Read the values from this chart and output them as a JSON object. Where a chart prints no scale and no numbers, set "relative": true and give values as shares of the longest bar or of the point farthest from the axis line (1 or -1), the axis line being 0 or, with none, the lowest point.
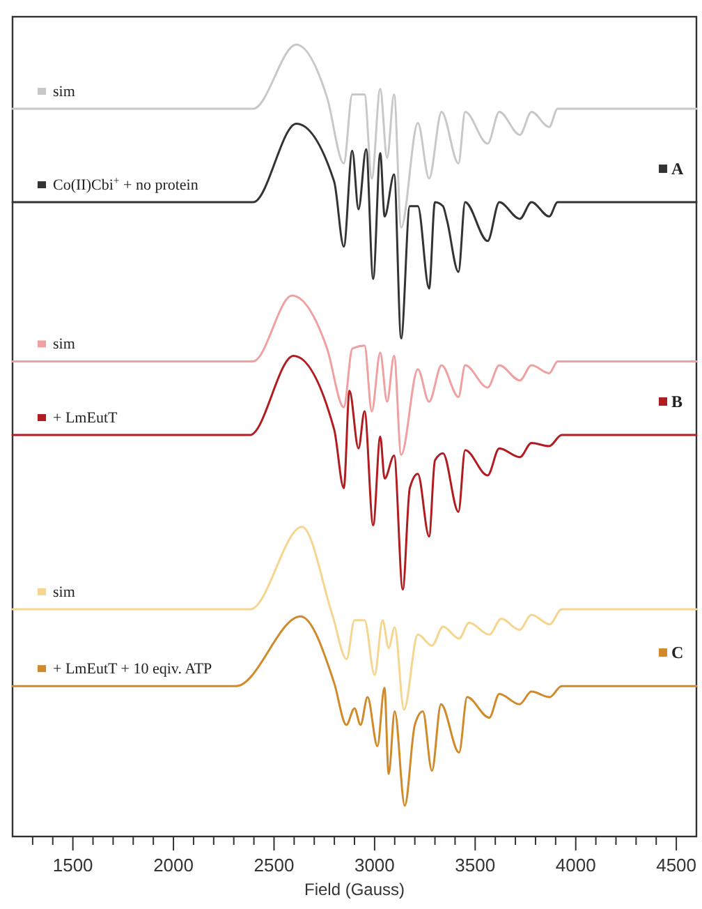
{
  "chart_data": {
    "type": "line",
    "relative": true,
    "xlabel": "Field (Gauss)",
    "xlim": [
      1200,
      4600
    ],
    "xticks": [
      {
        "value": 1300,
        "label": null
      },
      {
        "value": 1400,
        "label": null
      },
      1500,
      {
        "value": 1600,
        "label": null
      },
      {
        "value": 1700,
        "label": null
      },
      {
        "value": 1800,
        "label": null
      },
      {
        "value": 1900,
        "label": null
      },
      2000,
      {
        "value": 2100,
        "label": null
      },
      {
        "value": 2200,
        "label": null
      },
      {
        "value": 2300,
        "label": null
      },
      {
        "value": 2400,
        "label": null
      },
      2500,
      {
        "value": 2600,
        "label": null
      },
      {
        "value": 2700,
        "label": null
      },
      {
        "value": 2800,
        "label": null
      },
      {
        "value": 2900,
        "label": null
      },
      3000,
      {
        "value": 3100,
        "label": null
      },
      {
        "value": 3200,
        "label": null
      },
      {
        "value": 3300,
        "label": null
      },
      {
        "value": 3400,
        "label": null
      },
      3500,
      {
        "value": 3600,
        "label": null
      },
      {
        "value": 3700,
        "label": null
      },
      {
        "value": 3800,
        "label": null
      },
      {
        "value": 3900,
        "label": null
      },
      4000,
      {
        "value": 4100,
        "label": null
      },
      {
        "value": 4200,
        "label": null
      },
      {
        "value": 4300,
        "label": null
      },
      {
        "value": 4400,
        "label": null
      },
      4500
    ],
    "series": [
      {
        "name": "sim",
        "color": "#c8c8c8",
        "x": [
          1200,
          2396,
          2611,
          2764,
          2847,
          2889,
          2950,
          2986,
          3028,
          3062,
          3097,
          3132,
          3215,
          3271,
          3333,
          3417,
          3450,
          3562,
          3620,
          3722,
          3780,
          3868,
          3910,
          4600
        ],
        "values": [
          0.919,
          0.919,
          1.0,
          0.933,
          0.85,
          0.937,
          0.937,
          0.831,
          0.944,
          0.857,
          0.937,
          0.769,
          0.901,
          0.831,
          0.915,
          0.85,
          0.915,
          0.875,
          0.915,
          0.886,
          0.915,
          0.896,
          0.919,
          0.919
        ]
      },
      {
        "name": "Co(II)Cbi$^{+}$ + no protein",
        "color": "#333333",
        "x": [
          1200,
          2396,
          2611,
          2799,
          2847,
          2889,
          2920,
          2958,
          2993,
          3028,
          3050,
          3097,
          3132,
          3175,
          3215,
          3271,
          3300,
          3340,
          3360,
          3417,
          3450,
          3562,
          3620,
          3722,
          3780,
          3868,
          3910,
          4600
        ],
        "values": [
          0.801,
          0.801,
          0.9,
          0.827,
          0.745,
          0.866,
          0.792,
          0.868,
          0.704,
          0.863,
          0.783,
          0.836,
          0.629,
          0.796,
          0.796,
          0.692,
          0.801,
          0.796,
          0.778,
          0.713,
          0.801,
          0.752,
          0.801,
          0.78,
          0.801,
          0.783,
          0.801,
          0.801
        ]
      },
      {
        "name": "sim",
        "color": "#f0a0a0",
        "x": [
          1200,
          2396,
          2590,
          2764,
          2847,
          2889,
          2950,
          2986,
          3028,
          3062,
          3097,
          3132,
          3215,
          3271,
          3333,
          3417,
          3450,
          3562,
          3620,
          3722,
          3780,
          3868,
          3910,
          4600
        ],
        "values": [
          0.6,
          0.6,
          0.683,
          0.616,
          0.542,
          0.616,
          0.62,
          0.537,
          0.611,
          0.549,
          0.607,
          0.482,
          0.59,
          0.549,
          0.595,
          0.555,
          0.595,
          0.567,
          0.595,
          0.576,
          0.595,
          0.585,
          0.6,
          0.6
        ]
      },
      {
        "name": "+ LmEutT",
        "color": "#b01c20",
        "x": [
          1200,
          2380,
          2597,
          2799,
          2847,
          2875,
          2920,
          2950,
          2993,
          3028,
          3050,
          3097,
          3140,
          3175,
          3215,
          3271,
          3300,
          3340,
          3417,
          3450,
          3562,
          3620,
          3722,
          3780,
          3868,
          3930,
          4600
        ],
        "values": [
          0.507,
          0.507,
          0.607,
          0.514,
          0.44,
          0.563,
          0.49,
          0.537,
          0.393,
          0.505,
          0.452,
          0.481,
          0.312,
          0.44,
          0.458,
          0.379,
          0.475,
          0.484,
          0.41,
          0.488,
          0.456,
          0.49,
          0.479,
          0.497,
          0.493,
          0.507,
          0.507
        ]
      },
      {
        "name": "sim",
        "color": "#f5d590",
        "x": [
          1200,
          2382,
          2639,
          2790,
          2861,
          2900,
          2950,
          3000,
          3040,
          3070,
          3100,
          3146,
          3215,
          3285,
          3340,
          3420,
          3470,
          3570,
          3630,
          3720,
          3780,
          3870,
          3930,
          4600
        ],
        "values": [
          0.287,
          0.287,
          0.391,
          0.28,
          0.224,
          0.273,
          0.273,
          0.204,
          0.273,
          0.238,
          0.264,
          0.16,
          0.255,
          0.241,
          0.265,
          0.25,
          0.27,
          0.255,
          0.275,
          0.261,
          0.28,
          0.268,
          0.287,
          0.287
        ]
      },
      {
        "name": "+ LmEutT + 10 eqiv. ATP",
        "color": "#d08a2a",
        "x": [
          1200,
          2312,
          2632,
          2799,
          2860,
          2900,
          2930,
          2965,
          3014,
          3049,
          3070,
          3100,
          3150,
          3200,
          3240,
          3285,
          3330,
          3420,
          3460,
          3570,
          3620,
          3720,
          3780,
          3870,
          3930,
          4600
        ],
        "values": [
          0.19,
          0.19,
          0.278,
          0.194,
          0.141,
          0.162,
          0.141,
          0.176,
          0.114,
          0.188,
          0.079,
          0.158,
          0.039,
          0.141,
          0.158,
          0.083,
          0.167,
          0.106,
          0.176,
          0.15,
          0.18,
          0.167,
          0.183,
          0.176,
          0.19,
          0.19
        ]
      }
    ],
    "legend": "left",
    "annotations": [
      "A",
      "B",
      "C"
    ]
  }
}
